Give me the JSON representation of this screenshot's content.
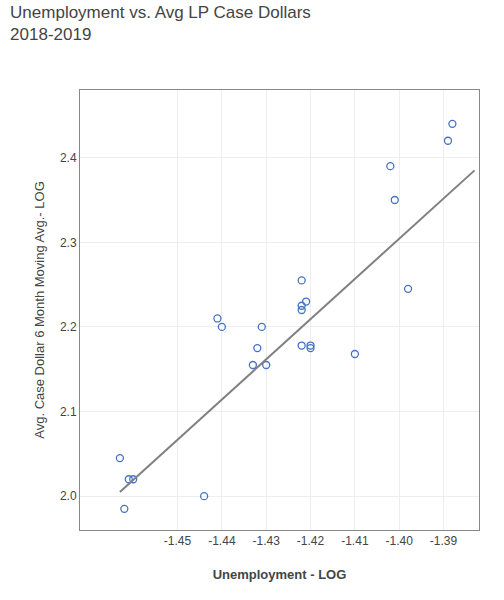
{
  "chart_data": {
    "type": "scatter",
    "title": "Unemployment vs. Avg LP Case Dollars\n2018-2019",
    "xlabel": "Unemployment - LOG",
    "ylabel": "Avg. Case Dollar 6 Month Moving Avg.- LOG",
    "series": [
      {
        "type": "scatter",
        "marker": "circle-open",
        "color": "#4472c4",
        "x": [
          -1.463,
          -1.461,
          -1.462,
          -1.46,
          -1.441,
          -1.44,
          -1.444,
          -1.431,
          -1.432,
          -1.433,
          -1.43,
          -1.422,
          -1.421,
          -1.422,
          -1.422,
          -1.422,
          -1.42,
          -1.42,
          -1.41,
          -1.402,
          -1.401,
          -1.398,
          -1.388,
          -1.389
        ],
        "values": [
          2.045,
          2.02,
          1.985,
          2.02,
          2.21,
          2.2,
          2.0,
          2.2,
          2.175,
          2.155,
          2.155,
          2.255,
          2.23,
          2.225,
          2.22,
          2.178,
          2.178,
          2.175,
          2.168,
          2.39,
          2.35,
          2.245,
          2.44,
          2.42
        ]
      },
      {
        "type": "line",
        "line_style": "solid",
        "color": "#808080",
        "x": [
          -1.463,
          -1.383
        ],
        "values": [
          2.005,
          2.385
        ]
      }
    ],
    "xlim": [
      -1.472,
      -1.382
    ],
    "ylim": [
      1.96,
      2.48
    ],
    "xticks": [
      -1.45,
      -1.44,
      -1.43,
      -1.42,
      -1.41,
      {
        "value": -1.4,
        "label": "-1.40"
      },
      -1.39
    ],
    "yticks": [
      {
        "value": 2.0,
        "label": "2.0"
      },
      2.1,
      2.2,
      2.3,
      2.4
    ],
    "grid": true
  }
}
